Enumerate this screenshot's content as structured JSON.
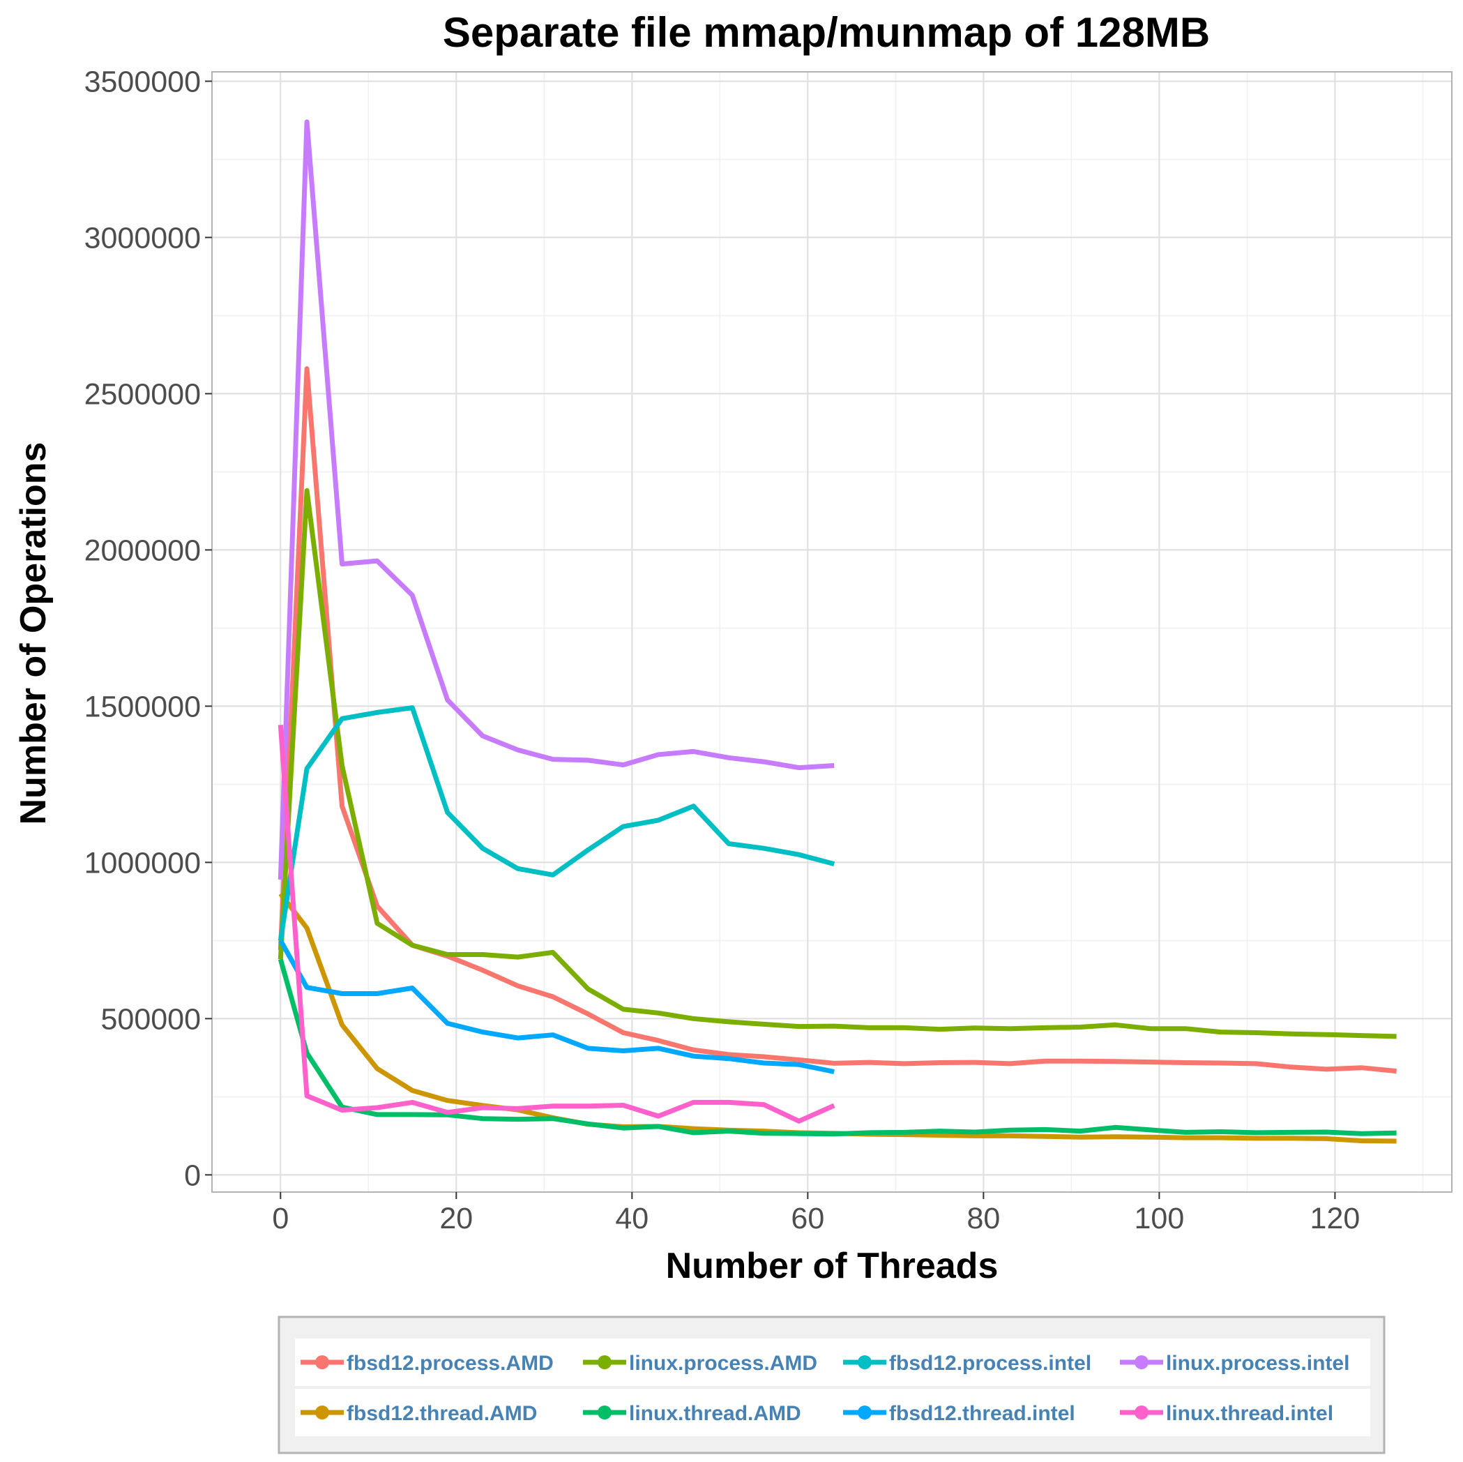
{
  "chart_data": {
    "type": "line",
    "title": "Separate file mmap/munmap of 128MB",
    "xlabel": "Number of Threads",
    "ylabel": "Number of Operations",
    "xlim": [
      -7.8,
      133.3
    ],
    "ylim": [
      -55000,
      3530000
    ],
    "x_ticks": [
      0,
      20,
      40,
      60,
      80,
      100,
      120
    ],
    "y_ticks": [
      0,
      500000,
      1000000,
      1500000,
      2000000,
      2500000,
      3000000,
      3500000
    ],
    "x_tick_labels": [
      "0",
      "20",
      "40",
      "60",
      "80",
      "100",
      "120"
    ],
    "y_tick_labels": [
      "0",
      "500000",
      "1000000",
      "1500000",
      "2000000",
      "2500000",
      "3000000",
      "3500000"
    ],
    "grid": true,
    "legend_position": "bottom",
    "series": [
      {
        "name": "fbsd12.process.AMD",
        "color": "#F8766D",
        "x": [
          0,
          3,
          7,
          11,
          15,
          19,
          23,
          27,
          31,
          35,
          39,
          43,
          47,
          51,
          55,
          59,
          63,
          67,
          71,
          75,
          79,
          83,
          87,
          91,
          95,
          99,
          103,
          107,
          111,
          115,
          119,
          123,
          127
        ],
        "y": [
          720000,
          2580000,
          1180000,
          860000,
          735000,
          700000,
          655000,
          605000,
          570000,
          515000,
          455000,
          430000,
          400000,
          385000,
          378000,
          368000,
          357000,
          360000,
          356000,
          359000,
          360000,
          356000,
          364000,
          364000,
          363000,
          361000,
          359000,
          358000,
          356000,
          345000,
          338000,
          343000,
          332000
        ]
      },
      {
        "name": "fbsd12.thread.AMD",
        "color": "#CD9600",
        "x": [
          0,
          3,
          7,
          11,
          15,
          19,
          23,
          27,
          31,
          35,
          39,
          43,
          47,
          51,
          55,
          59,
          63,
          67,
          71,
          75,
          79,
          83,
          87,
          91,
          95,
          99,
          103,
          107,
          111,
          115,
          119,
          123,
          127
        ],
        "y": [
          900000,
          790000,
          480000,
          340000,
          270000,
          238000,
          222000,
          208000,
          183000,
          162000,
          154000,
          155000,
          148000,
          143000,
          140000,
          135000,
          133000,
          130000,
          129000,
          127000,
          125000,
          125000,
          123000,
          121000,
          122000,
          121000,
          119000,
          119000,
          117000,
          117000,
          116000,
          109000,
          108000
        ]
      },
      {
        "name": "linux.process.AMD",
        "color": "#7CAE00",
        "x": [
          0,
          3,
          7,
          11,
          15,
          19,
          23,
          27,
          31,
          35,
          39,
          43,
          47,
          51,
          55,
          59,
          63,
          67,
          71,
          75,
          79,
          83,
          87,
          91,
          95,
          99,
          103,
          107,
          111,
          115,
          119,
          123,
          127
        ],
        "y": [
          690000,
          2190000,
          1310000,
          805000,
          735000,
          705000,
          705000,
          697000,
          712000,
          595000,
          530000,
          518000,
          500000,
          490000,
          482000,
          475000,
          476000,
          471000,
          471000,
          466000,
          470000,
          468000,
          471000,
          473000,
          480000,
          468000,
          468000,
          457000,
          455000,
          451000,
          449000,
          446000,
          443000
        ]
      },
      {
        "name": "linux.thread.AMD",
        "color": "#00BE67",
        "x": [
          0,
          3,
          7,
          11,
          15,
          19,
          23,
          27,
          31,
          35,
          39,
          43,
          47,
          51,
          55,
          59,
          63,
          67,
          71,
          75,
          79,
          83,
          87,
          91,
          95,
          99,
          103,
          107,
          111,
          115,
          119,
          123,
          127
        ],
        "y": [
          690000,
          390000,
          217000,
          193000,
          193000,
          192000,
          180000,
          178000,
          180000,
          163000,
          150000,
          155000,
          135000,
          140000,
          133000,
          132000,
          131000,
          135000,
          136000,
          140000,
          137000,
          143000,
          145000,
          140000,
          152000,
          144000,
          136000,
          138000,
          135000,
          136000,
          137000,
          132000,
          134000
        ]
      },
      {
        "name": "fbsd12.process.intel",
        "color": "#00BFC4",
        "x": [
          0,
          3,
          7,
          11,
          15,
          19,
          23,
          27,
          31,
          35,
          39,
          43,
          47,
          51,
          55,
          59,
          63
        ],
        "y": [
          750000,
          1300000,
          1460000,
          1480000,
          1495000,
          1160000,
          1045000,
          980000,
          960000,
          1040000,
          1115000,
          1135000,
          1180000,
          1060000,
          1045000,
          1025000,
          995000
        ]
      },
      {
        "name": "fbsd12.thread.intel",
        "color": "#00A9FF",
        "x": [
          0,
          3,
          7,
          11,
          15,
          19,
          23,
          27,
          31,
          35,
          39,
          43,
          47,
          51,
          55,
          59,
          63
        ],
        "y": [
          750000,
          600000,
          580000,
          580000,
          598000,
          485000,
          457000,
          438000,
          448000,
          405000,
          397000,
          405000,
          380000,
          372000,
          358000,
          353000,
          330000
        ]
      },
      {
        "name": "linux.process.intel",
        "color": "#C77CFF",
        "x": [
          0,
          3,
          7,
          11,
          15,
          19,
          23,
          27,
          31,
          35,
          39,
          43,
          47,
          51,
          55,
          59,
          63
        ],
        "y": [
          945000,
          3370000,
          1955000,
          1965000,
          1855000,
          1520000,
          1405000,
          1360000,
          1330000,
          1327000,
          1312000,
          1345000,
          1355000,
          1335000,
          1322000,
          1303000,
          1310000
        ]
      },
      {
        "name": "linux.thread.intel",
        "color": "#FF61CC",
        "x": [
          0,
          3,
          7,
          11,
          15,
          19,
          23,
          27,
          31,
          35,
          39,
          43,
          47,
          51,
          55,
          59,
          63
        ],
        "y": [
          1440000,
          253000,
          207000,
          215000,
          232000,
          200000,
          215000,
          212000,
          220000,
          220000,
          223000,
          188000,
          232000,
          232000,
          225000,
          172000,
          222000
        ]
      }
    ]
  }
}
